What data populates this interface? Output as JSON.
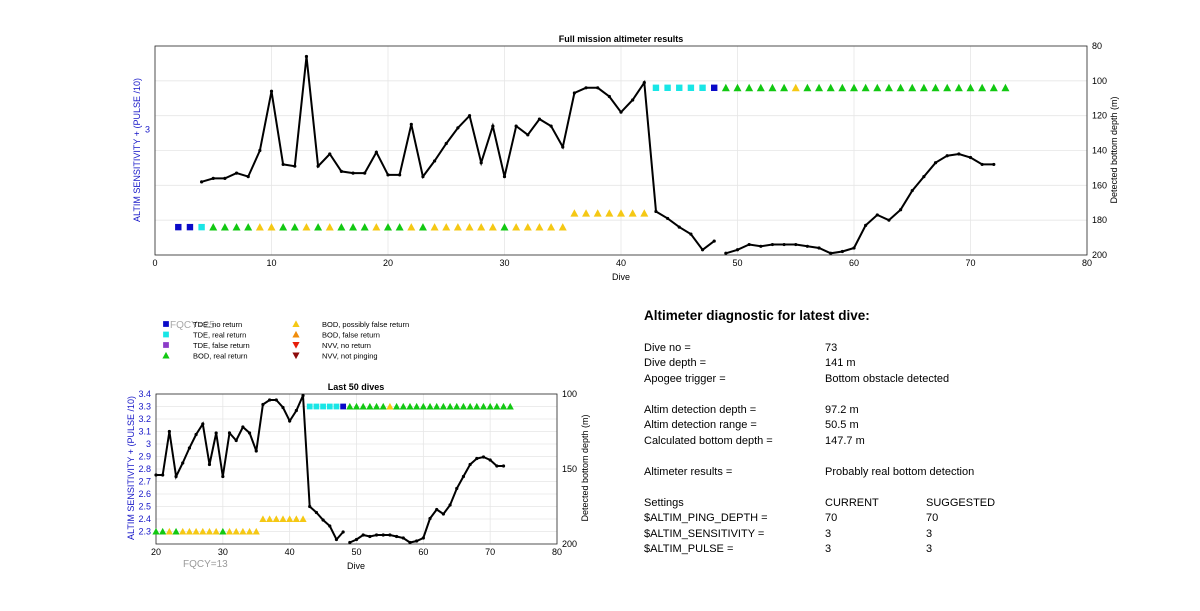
{
  "chart_data": [
    {
      "type": "line",
      "title": "Full mission altimeter results",
      "xlabel": "Dive",
      "ylabel": "ALTIM SENSITIVITY + (PULSE /10)",
      "y2label": "Detected bottom depth (m)",
      "xlim": [
        0,
        80
      ],
      "xticks": [
        "0",
        "10",
        "20",
        "30",
        "40",
        "50",
        "60",
        "70",
        "80"
      ],
      "ylim": [
        2.1,
        3.6
      ],
      "yticks": [
        "3"
      ],
      "y2lim": [
        80,
        200
      ],
      "y2ticks": [
        "80",
        "100",
        "120",
        "140",
        "160",
        "180",
        "200"
      ],
      "y2_reversed": true,
      "grid": true,
      "series": [
        {
          "axis": "right",
          "x": [
            4,
            5,
            6,
            7,
            8,
            9,
            10,
            11,
            12,
            13,
            14,
            15,
            16,
            17,
            18,
            19,
            20,
            21,
            22,
            23,
            24,
            25,
            26,
            27,
            28,
            29,
            30,
            31,
            32,
            33,
            34,
            35,
            36,
            37,
            38,
            39,
            40,
            41,
            42,
            43,
            44,
            45,
            46,
            47,
            48,
            49,
            50,
            51,
            52,
            53,
            54,
            55,
            56,
            57,
            58,
            59,
            60,
            61,
            62,
            63,
            64,
            65,
            66,
            67,
            68,
            69,
            70,
            71,
            72,
            73
          ],
          "values": [
            158,
            156,
            156,
            153,
            155,
            140,
            106,
            148,
            149,
            86,
            149,
            142,
            152,
            153,
            153,
            141,
            154,
            154,
            125,
            155,
            146,
            136,
            127,
            120,
            147,
            126,
            155,
            126,
            131,
            122,
            126,
            138,
            107,
            104,
            104,
            109,
            118,
            111,
            101,
            175,
            179,
            184,
            188,
            197,
            192,
            199,
            197,
            194,
            195,
            194,
            194,
            194,
            195,
            196,
            199,
            198,
            196,
            183,
            177,
            180,
            174,
            163,
            155,
            147,
            143,
            142,
            144,
            148,
            148,
            null
          ],
          "point_labels": []
        },
        {
          "axis": "left",
          "name": "",
          "markers": [
            {
              "x": 2,
              "y": 2.3,
              "class": "TDE, no return"
            },
            {
              "x": 3,
              "y": 2.3,
              "class": "TDE, no return"
            },
            {
              "x": 4,
              "y": 2.3,
              "class": "TDE, real return"
            },
            {
              "x": 5,
              "y": 2.3,
              "class": "BOD, real return"
            },
            {
              "x": 6,
              "y": 2.3,
              "class": "BOD, real return"
            },
            {
              "x": 7,
              "y": 2.3,
              "class": "BOD, real return"
            },
            {
              "x": 8,
              "y": 2.3,
              "class": "BOD, real return"
            },
            {
              "x": 9,
              "y": 2.3,
              "class": "BOD, possibly false return"
            },
            {
              "x": 10,
              "y": 2.3,
              "class": "BOD, possibly false return"
            },
            {
              "x": 11,
              "y": 2.3,
              "class": "BOD, real return"
            },
            {
              "x": 12,
              "y": 2.3,
              "class": "BOD, real return"
            },
            {
              "x": 13,
              "y": 2.3,
              "class": "BOD, possibly false return"
            },
            {
              "x": 14,
              "y": 2.3,
              "class": "BOD, real return"
            },
            {
              "x": 15,
              "y": 2.3,
              "class": "BOD, possibly false return"
            },
            {
              "x": 16,
              "y": 2.3,
              "class": "BOD, real return"
            },
            {
              "x": 17,
              "y": 2.3,
              "class": "BOD, real return"
            },
            {
              "x": 18,
              "y": 2.3,
              "class": "BOD, real return"
            },
            {
              "x": 19,
              "y": 2.3,
              "class": "BOD, possibly false return"
            },
            {
              "x": 20,
              "y": 2.3,
              "class": "BOD, real return"
            },
            {
              "x": 21,
              "y": 2.3,
              "class": "BOD, real return"
            },
            {
              "x": 22,
              "y": 2.3,
              "class": "BOD, possibly false return"
            },
            {
              "x": 23,
              "y": 2.3,
              "class": "BOD, real return"
            },
            {
              "x": 24,
              "y": 2.3,
              "class": "BOD, possibly false return"
            },
            {
              "x": 25,
              "y": 2.3,
              "class": "BOD, possibly false return"
            },
            {
              "x": 26,
              "y": 2.3,
              "class": "BOD, possibly false return"
            },
            {
              "x": 27,
              "y": 2.3,
              "class": "BOD, possibly false return"
            },
            {
              "x": 28,
              "y": 2.3,
              "class": "BOD, possibly false return"
            },
            {
              "x": 29,
              "y": 2.3,
              "class": "BOD, possibly false return"
            },
            {
              "x": 30,
              "y": 2.3,
              "class": "BOD, real return"
            },
            {
              "x": 31,
              "y": 2.3,
              "class": "BOD, possibly false return"
            },
            {
              "x": 32,
              "y": 2.3,
              "class": "BOD, possibly false return"
            },
            {
              "x": 33,
              "y": 2.3,
              "class": "BOD, possibly false return"
            },
            {
              "x": 34,
              "y": 2.3,
              "class": "BOD, possibly false return"
            },
            {
              "x": 35,
              "y": 2.3,
              "class": "BOD, possibly false return"
            },
            {
              "x": 36,
              "y": 2.4,
              "class": "BOD, possibly false return"
            },
            {
              "x": 37,
              "y": 2.4,
              "class": "BOD, possibly false return"
            },
            {
              "x": 38,
              "y": 2.4,
              "class": "BOD, possibly false return"
            },
            {
              "x": 39,
              "y": 2.4,
              "class": "BOD, possibly false return"
            },
            {
              "x": 40,
              "y": 2.4,
              "class": "BOD, possibly false return"
            },
            {
              "x": 41,
              "y": 2.4,
              "class": "BOD, possibly false return"
            },
            {
              "x": 42,
              "y": 2.4,
              "class": "BOD, possibly false return"
            },
            {
              "x": 43,
              "y": 3.3,
              "class": "TDE, real return"
            },
            {
              "x": 44,
              "y": 3.3,
              "class": "TDE, real return"
            },
            {
              "x": 45,
              "y": 3.3,
              "class": "TDE, real return"
            },
            {
              "x": 46,
              "y": 3.3,
              "class": "TDE, real return"
            },
            {
              "x": 47,
              "y": 3.3,
              "class": "TDE, real return"
            },
            {
              "x": 48,
              "y": 3.3,
              "class": "TDE, no return"
            },
            {
              "x": 49,
              "y": 3.3,
              "class": "BOD, real return"
            },
            {
              "x": 50,
              "y": 3.3,
              "class": "BOD, real return"
            },
            {
              "x": 51,
              "y": 3.3,
              "class": "BOD, real return"
            },
            {
              "x": 52,
              "y": 3.3,
              "class": "BOD, real return"
            },
            {
              "x": 53,
              "y": 3.3,
              "class": "BOD, real return"
            },
            {
              "x": 54,
              "y": 3.3,
              "class": "BOD, real return"
            },
            {
              "x": 55,
              "y": 3.3,
              "class": "BOD, possibly false return"
            },
            {
              "x": 56,
              "y": 3.3,
              "class": "BOD, real return"
            },
            {
              "x": 57,
              "y": 3.3,
              "class": "BOD, real return"
            },
            {
              "x": 58,
              "y": 3.3,
              "class": "BOD, real return"
            },
            {
              "x": 59,
              "y": 3.3,
              "class": "BOD, real return"
            },
            {
              "x": 60,
              "y": 3.3,
              "class": "BOD, real return"
            },
            {
              "x": 61,
              "y": 3.3,
              "class": "BOD, real return"
            },
            {
              "x": 62,
              "y": 3.3,
              "class": "BOD, real return"
            },
            {
              "x": 63,
              "y": 3.3,
              "class": "BOD, real return"
            },
            {
              "x": 64,
              "y": 3.3,
              "class": "BOD, real return"
            },
            {
              "x": 65,
              "y": 3.3,
              "class": "BOD, real return"
            },
            {
              "x": 66,
              "y": 3.3,
              "class": "BOD, real return"
            },
            {
              "x": 67,
              "y": 3.3,
              "class": "BOD, real return"
            },
            {
              "x": 68,
              "y": 3.3,
              "class": "BOD, real return"
            },
            {
              "x": 69,
              "y": 3.3,
              "class": "BOD, real return"
            },
            {
              "x": 70,
              "y": 3.3,
              "class": "BOD, real return"
            },
            {
              "x": 71,
              "y": 3.3,
              "class": "BOD, real return"
            },
            {
              "x": 72,
              "y": 3.3,
              "class": "BOD, real return"
            },
            {
              "x": 73,
              "y": 3.3,
              "class": "BOD, real return"
            }
          ]
        }
      ]
    },
    {
      "type": "line",
      "title": "Last 50 dives",
      "xlabel": "Dive",
      "ylabel": "ALTIM SENSITIVITY + (PULSE /10)",
      "y2label": "Detected bottom depth (m)",
      "xlim": [
        20,
        80
      ],
      "xticks": [
        "20",
        "30",
        "40",
        "50",
        "60",
        "70",
        "80"
      ],
      "ylim": [
        2.2,
        3.4
      ],
      "yticks": [
        "2.3",
        "2.4",
        "2.5",
        "2.6",
        "2.7",
        "2.8",
        "2.9",
        "3",
        "3.1",
        "3.2",
        "3.3",
        "3.4"
      ],
      "y2lim": [
        100,
        200
      ],
      "y2ticks": [
        "100",
        "150",
        "200"
      ],
      "y2_reversed": true,
      "grid": true,
      "annotation": "FQCY=13"
    }
  ],
  "legend": {
    "items": [
      {
        "label": "TDE, no return",
        "shape": "square",
        "color": "#0a0ac8"
      },
      {
        "label": "TDE, real return",
        "shape": "square",
        "color": "#19e6e6"
      },
      {
        "label": "TDE, false return",
        "shape": "square",
        "color": "#8c3cc8"
      },
      {
        "label": "BOD, real return",
        "shape": "triangle-up",
        "color": "#12c812"
      },
      {
        "label": "BOD, possibly false return",
        "shape": "triangle-up",
        "color": "#f5c814"
      },
      {
        "label": "BOD, false return",
        "shape": "triangle-up",
        "color": "#f08c0a"
      },
      {
        "label": "NVV, no return",
        "shape": "triangle-down",
        "color": "#e61e0a"
      },
      {
        "label": "NVV, not pinging",
        "shape": "triangle-down",
        "color": "#8c0a0a"
      }
    ],
    "ghost_text": "FQCY=25"
  },
  "colors": {
    "ylabel": "#1818c8",
    "line": "#000000",
    "annotation": "#9a9a9a"
  },
  "diagnostic": {
    "title": "Altimeter diagnostic for latest dive:",
    "dive_no_label": "Dive no =",
    "dive_no": "73",
    "dive_depth_label": "Dive depth =",
    "dive_depth": "141 m",
    "apogee_label": "Apogee trigger =",
    "apogee": "Bottom obstacle detected",
    "det_depth_label": "Altim detection depth =",
    "det_depth": "97.2 m",
    "det_range_label": "Altim detection range =",
    "det_range": "50.5 m",
    "calc_depth_label": "Calculated bottom depth =",
    "calc_depth": "147.7 m",
    "results_label": "Altimeter results =",
    "results": "Probably real bottom detection",
    "settings_label": "Settings",
    "current_label": "CURRENT",
    "suggested_label": "SUGGESTED",
    "settings": [
      {
        "name": "$ALTIM_PING_DEPTH =",
        "current": "70",
        "suggested": "70"
      },
      {
        "name": "$ALTIM_SENSITIVITY =",
        "current": "3",
        "suggested": "3"
      },
      {
        "name": "$ALTIM_PULSE =",
        "current": "3",
        "suggested": "3"
      }
    ]
  }
}
